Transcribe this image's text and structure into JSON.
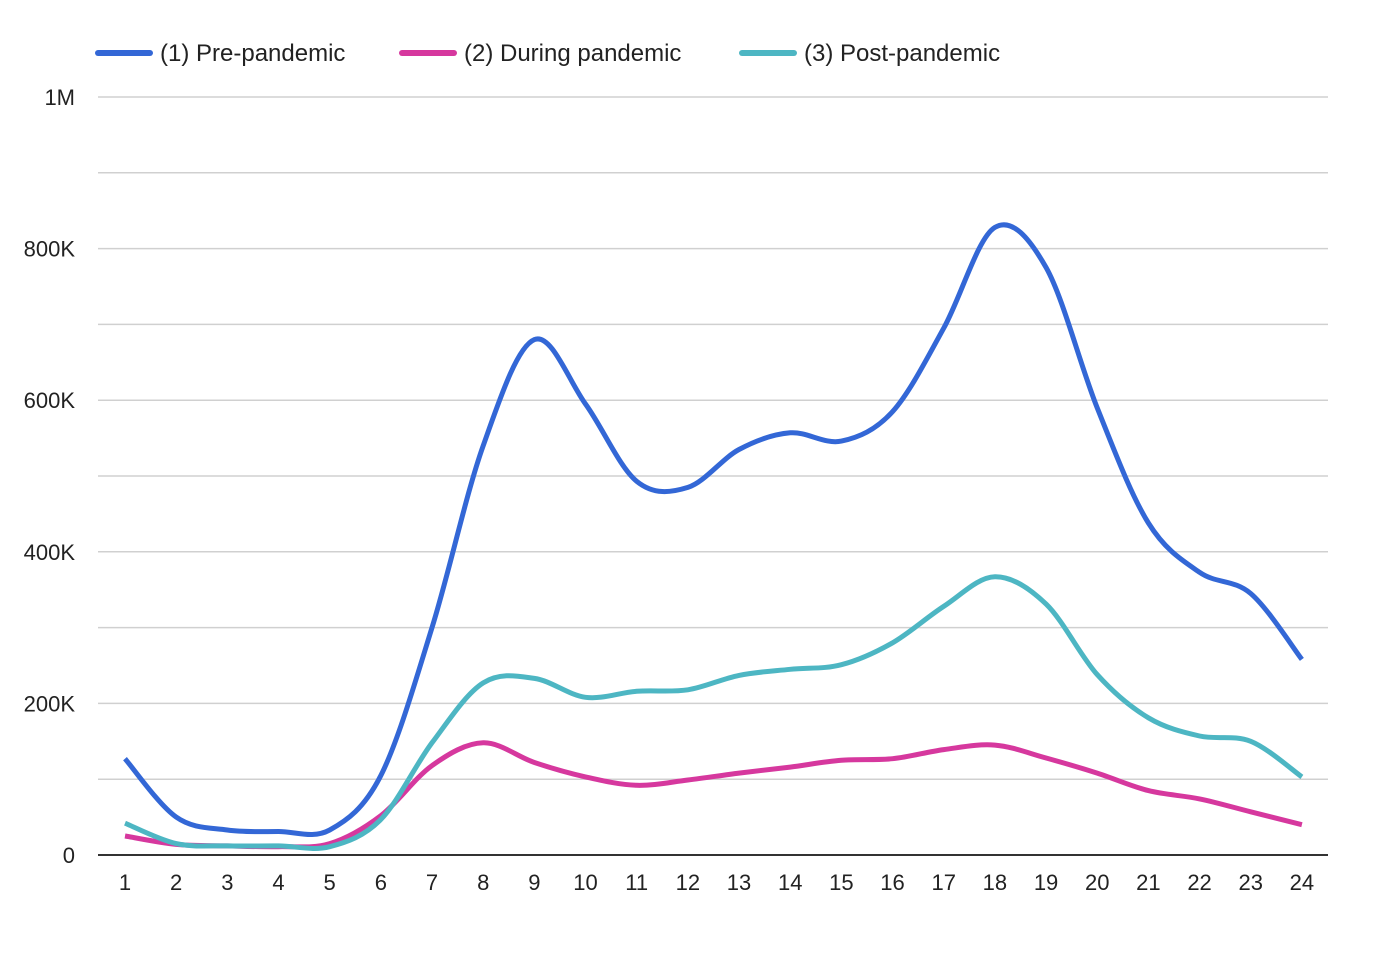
{
  "chart_data": {
    "type": "line",
    "title": "",
    "xlabel": "",
    "ylabel": "",
    "categories": [
      "1",
      "2",
      "3",
      "4",
      "5",
      "6",
      "7",
      "8",
      "9",
      "10",
      "11",
      "12",
      "13",
      "14",
      "15",
      "16",
      "17",
      "18",
      "19",
      "20",
      "21",
      "22",
      "23",
      "24"
    ],
    "ylim": [
      0,
      1000000
    ],
    "y_ticks": [
      {
        "value": 0,
        "label": "0"
      },
      {
        "value": 200000,
        "label": "200K"
      },
      {
        "value": 400000,
        "label": "400K"
      },
      {
        "value": 600000,
        "label": "600K"
      },
      {
        "value": 800000,
        "label": "800K"
      },
      {
        "value": 1000000,
        "label": "1M"
      }
    ],
    "gridlines": [
      0,
      100000,
      200000,
      300000,
      400000,
      500000,
      600000,
      700000,
      800000,
      900000,
      1000000
    ],
    "grid": true,
    "legend_position": "top-left",
    "series": [
      {
        "name": "(1) Pre-pandemic",
        "color": "#3367d6",
        "values": [
          127000,
          50000,
          33000,
          31000,
          33000,
          105000,
          300000,
          540000,
          680000,
          595000,
          493000,
          485000,
          535000,
          557000,
          546000,
          585000,
          695000,
          828000,
          775000,
          590000,
          438000,
          373000,
          345000,
          258000
        ]
      },
      {
        "name": "(2) During pandemic",
        "color": "#d6389e",
        "values": [
          25000,
          14000,
          12000,
          11000,
          15000,
          52000,
          118000,
          148000,
          122000,
          103000,
          92000,
          99000,
          108000,
          116000,
          125000,
          127000,
          139000,
          145000,
          128000,
          108000,
          85000,
          74000,
          57000,
          40000
        ]
      },
      {
        "name": "(3) Post-pandemic",
        "color": "#4db6c3",
        "values": [
          42000,
          15000,
          12000,
          12000,
          11000,
          47000,
          148000,
          227000,
          233000,
          208000,
          216000,
          218000,
          237000,
          245000,
          251000,
          280000,
          328000,
          367000,
          331000,
          238000,
          181000,
          157000,
          150000,
          103000
        ]
      }
    ]
  }
}
